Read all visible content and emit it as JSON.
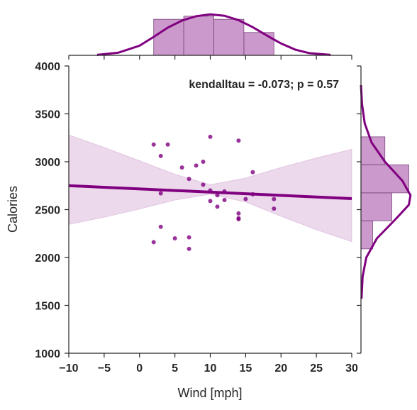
{
  "chart_data": {
    "type": "scatter",
    "title": "",
    "xlabel": "Wind [mph]",
    "ylabel": "Calories",
    "xlim": [
      -10,
      30
    ],
    "ylim": [
      1000,
      4000
    ],
    "xticks": [
      "−10",
      "−5",
      "0",
      "5",
      "10",
      "15",
      "20",
      "25",
      "30"
    ],
    "xtick_values": [
      -10,
      -5,
      0,
      5,
      10,
      15,
      20,
      25,
      30
    ],
    "yticks": [
      "1000",
      "1500",
      "2000",
      "2500",
      "3000",
      "3500",
      "4000"
    ],
    "ytick_values": [
      1000,
      1500,
      2000,
      2500,
      3000,
      3500,
      4000
    ],
    "grid": false,
    "annotation": "kendalltau = -0.073; p = 0.57",
    "color": "#800080",
    "points": [
      {
        "x": 2,
        "y": 3180
      },
      {
        "x": 4,
        "y": 3180
      },
      {
        "x": 3,
        "y": 3060
      },
      {
        "x": 10,
        "y": 3260
      },
      {
        "x": 14,
        "y": 3220
      },
      {
        "x": 9,
        "y": 3000
      },
      {
        "x": 6,
        "y": 2940
      },
      {
        "x": 8,
        "y": 2960
      },
      {
        "x": 16,
        "y": 2890
      },
      {
        "x": 7,
        "y": 2820
      },
      {
        "x": 9,
        "y": 2760
      },
      {
        "x": 3,
        "y": 2670
      },
      {
        "x": 10,
        "y": 2700
      },
      {
        "x": 11,
        "y": 2650
      },
      {
        "x": 12,
        "y": 2690
      },
      {
        "x": 16,
        "y": 2660
      },
      {
        "x": 10,
        "y": 2590
      },
      {
        "x": 12,
        "y": 2600
      },
      {
        "x": 15,
        "y": 2610
      },
      {
        "x": 19,
        "y": 2610
      },
      {
        "x": 11,
        "y": 2530
      },
      {
        "x": 19,
        "y": 2510
      },
      {
        "x": 14,
        "y": 2460
      },
      {
        "x": 14,
        "y": 2410
      },
      {
        "x": 14,
        "y": 2400
      },
      {
        "x": 3,
        "y": 2320
      },
      {
        "x": 5,
        "y": 2200
      },
      {
        "x": 7,
        "y": 2210
      },
      {
        "x": 2,
        "y": 2160
      },
      {
        "x": 7,
        "y": 2090
      }
    ],
    "regression": {
      "x": [
        -10,
        30
      ],
      "y": [
        2750,
        2615
      ]
    },
    "confidence_band": {
      "x": [
        -10,
        -5,
        0,
        5,
        10,
        15,
        20,
        25,
        30
      ],
      "upper": [
        3280,
        3150,
        3010,
        2870,
        2760,
        2830,
        2940,
        3040,
        3130
      ],
      "lower": [
        2345,
        2420,
        2505,
        2600,
        2660,
        2580,
        2430,
        2290,
        2165
      ]
    },
    "marginal_x": {
      "hist_bins": [
        2,
        6.25,
        10.5,
        14.75,
        19
      ],
      "hist_density": [
        0.82,
        0.89,
        0.82,
        0.52
      ],
      "kde_x": [
        -6,
        -3,
        0,
        2,
        4,
        6,
        8,
        10,
        12,
        14,
        16,
        18,
        20,
        22,
        24,
        27
      ],
      "kde_y": [
        0.01,
        0.06,
        0.22,
        0.42,
        0.63,
        0.79,
        0.89,
        0.93,
        0.9,
        0.8,
        0.64,
        0.45,
        0.27,
        0.13,
        0.05,
        0.01
      ]
    },
    "marginal_y": {
      "hist_bins": [
        2090,
        2383,
        2675,
        2968,
        3260
      ],
      "hist_density": [
        0.22,
        0.58,
        0.9,
        0.45
      ],
      "kde_y": [
        1570,
        1800,
        2000,
        2200,
        2400,
        2550,
        2650,
        2800,
        3000,
        3200,
        3400,
        3600,
        3800
      ],
      "kde_x": [
        0.01,
        0.03,
        0.1,
        0.3,
        0.65,
        0.9,
        0.93,
        0.78,
        0.45,
        0.2,
        0.07,
        0.02,
        0.0
      ]
    }
  }
}
